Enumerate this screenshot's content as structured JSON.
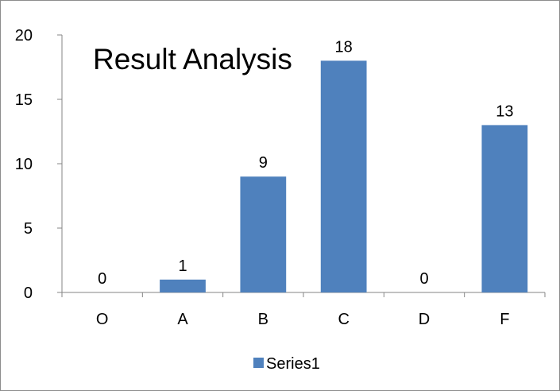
{
  "chart_data": {
    "type": "bar",
    "title": "Result Analysis",
    "categories": [
      "O",
      "A",
      "B",
      "C",
      "D",
      "F"
    ],
    "series": [
      {
        "name": "Series1",
        "values": [
          0,
          1,
          9,
          18,
          0,
          13
        ],
        "color": "#4f81bd"
      }
    ],
    "data_labels": [
      "0",
      "1",
      "9",
      "18",
      "0",
      "13"
    ],
    "y_ticks": [
      "0",
      "5",
      "10",
      "15",
      "20"
    ],
    "ylim": [
      0,
      20
    ],
    "grid": false,
    "legend_position": "bottom"
  }
}
